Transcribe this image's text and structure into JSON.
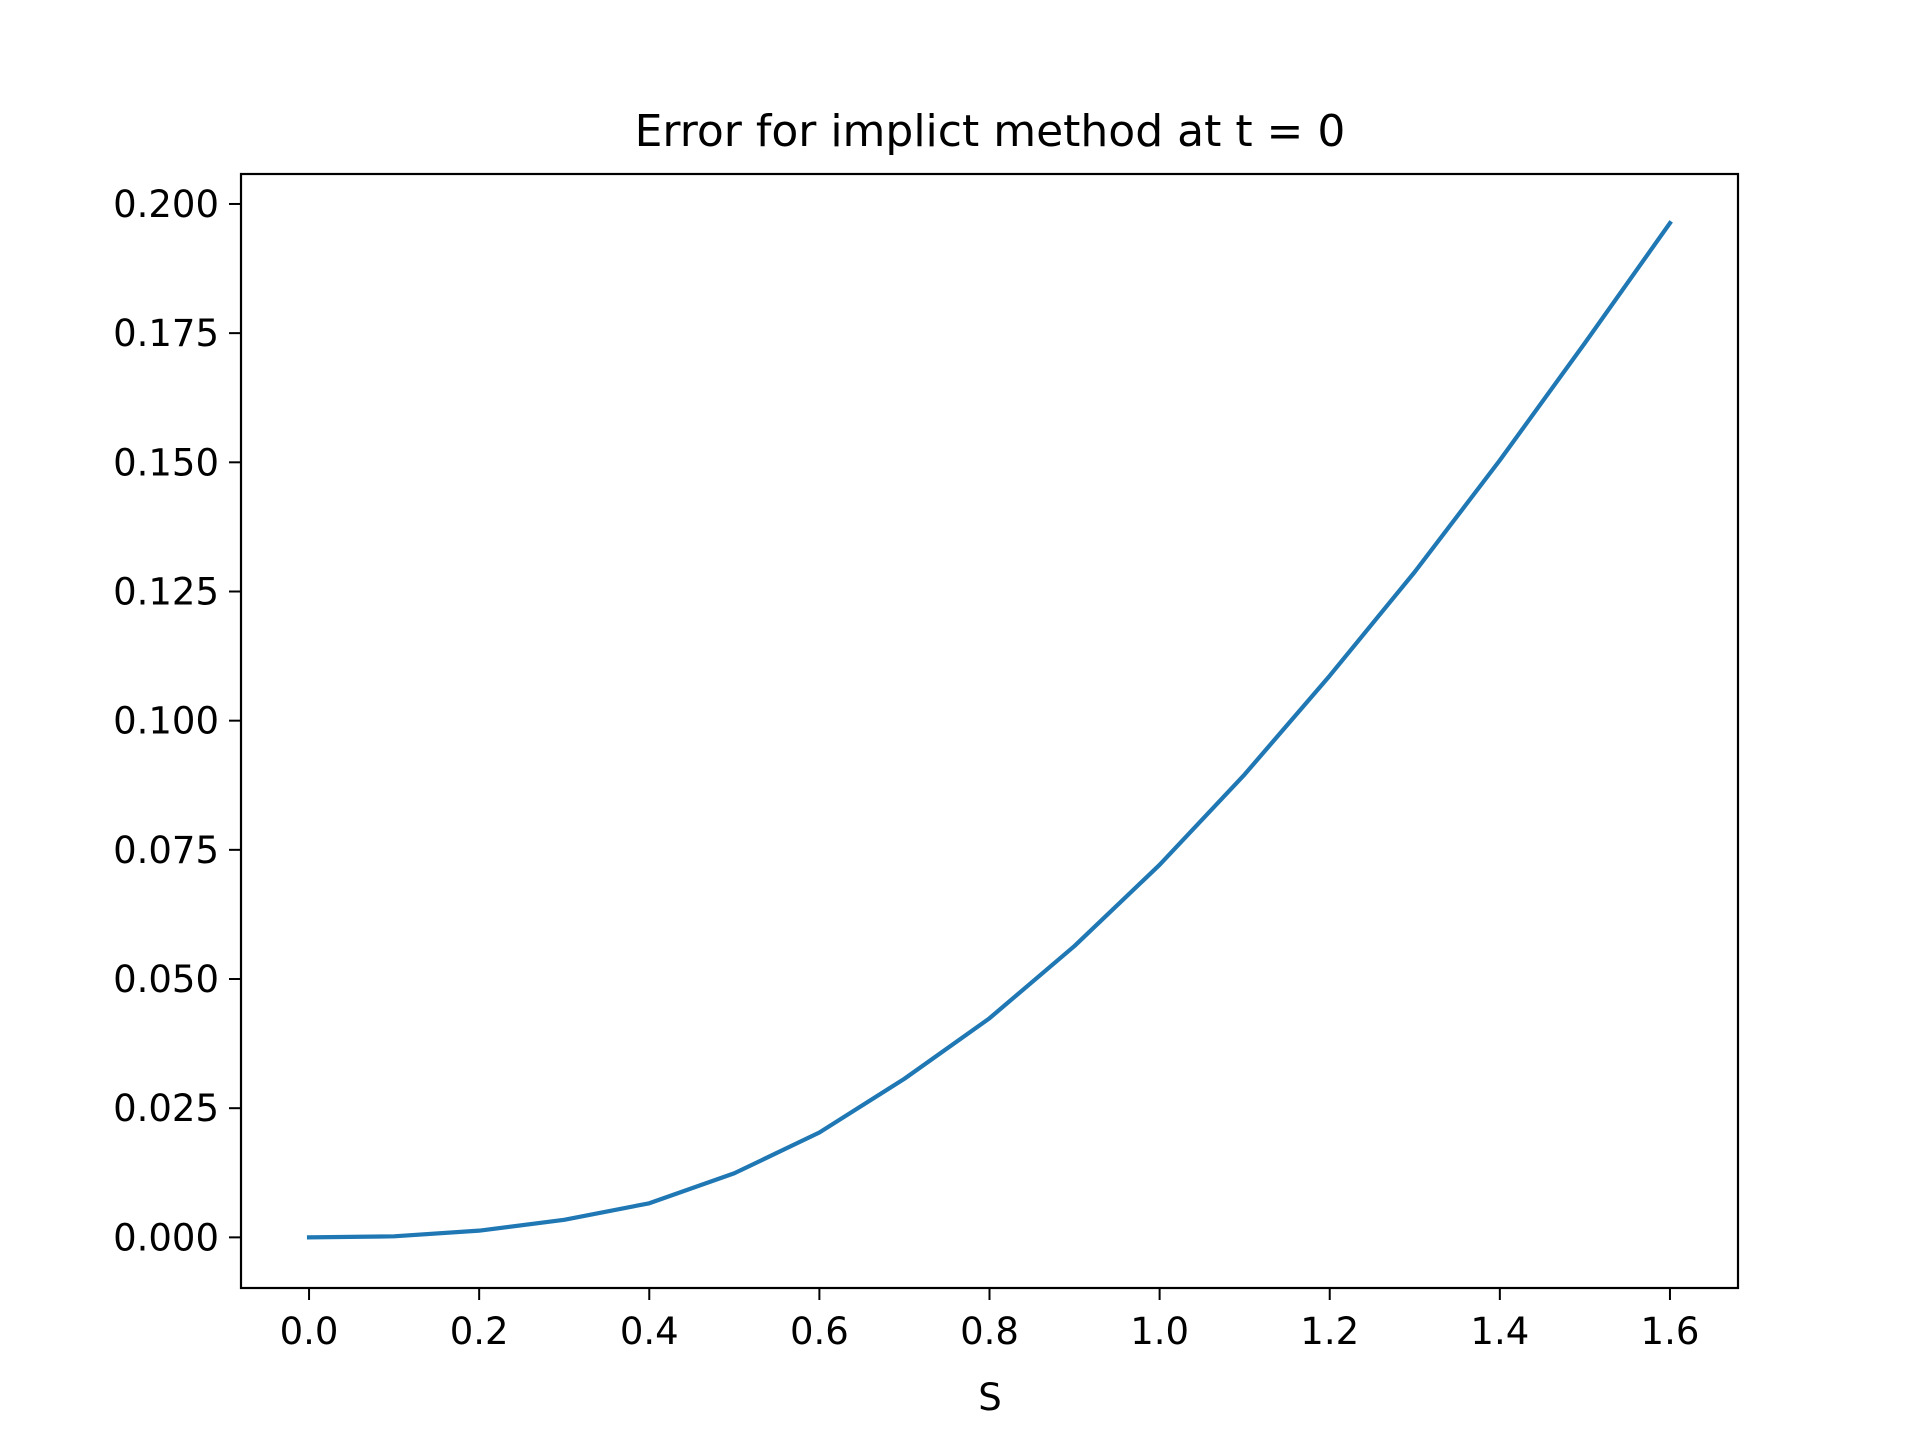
{
  "chart_data": {
    "type": "line",
    "title": "Error for implict method at t = 0",
    "xlabel": "S",
    "ylabel": "",
    "xlim": [
      -0.08,
      1.68
    ],
    "ylim": [
      -0.0098,
      0.2058
    ],
    "xticks": [
      0.0,
      0.2,
      0.4,
      0.6,
      0.8,
      1.0,
      1.2,
      1.4,
      1.6
    ],
    "xtick_labels": [
      "0.0",
      "0.2",
      "0.4",
      "0.6",
      "0.8",
      "1.0",
      "1.2",
      "1.4",
      "1.6"
    ],
    "yticks": [
      0.0,
      0.025,
      0.05,
      0.075,
      0.1,
      0.125,
      0.15,
      0.175,
      0.2
    ],
    "ytick_labels": [
      "0.000",
      "0.025",
      "0.050",
      "0.075",
      "0.100",
      "0.125",
      "0.150",
      "0.175",
      "0.200"
    ],
    "grid": false,
    "legend": "none",
    "series": [
      {
        "color": "#1f77b4",
        "x": [
          0.0,
          0.1,
          0.2,
          0.3,
          0.4,
          0.5,
          0.6,
          0.7,
          0.8,
          0.9,
          1.0,
          1.1,
          1.2,
          1.3,
          1.4,
          1.5,
          1.6
        ],
        "y": [
          0.0,
          0.0002,
          0.0013,
          0.0034,
          0.0066,
          0.0124,
          0.0203,
          0.0307,
          0.0424,
          0.0564,
          0.0721,
          0.0896,
          0.1087,
          0.1288,
          0.1504,
          0.1731,
          0.1963
        ]
      }
    ]
  }
}
